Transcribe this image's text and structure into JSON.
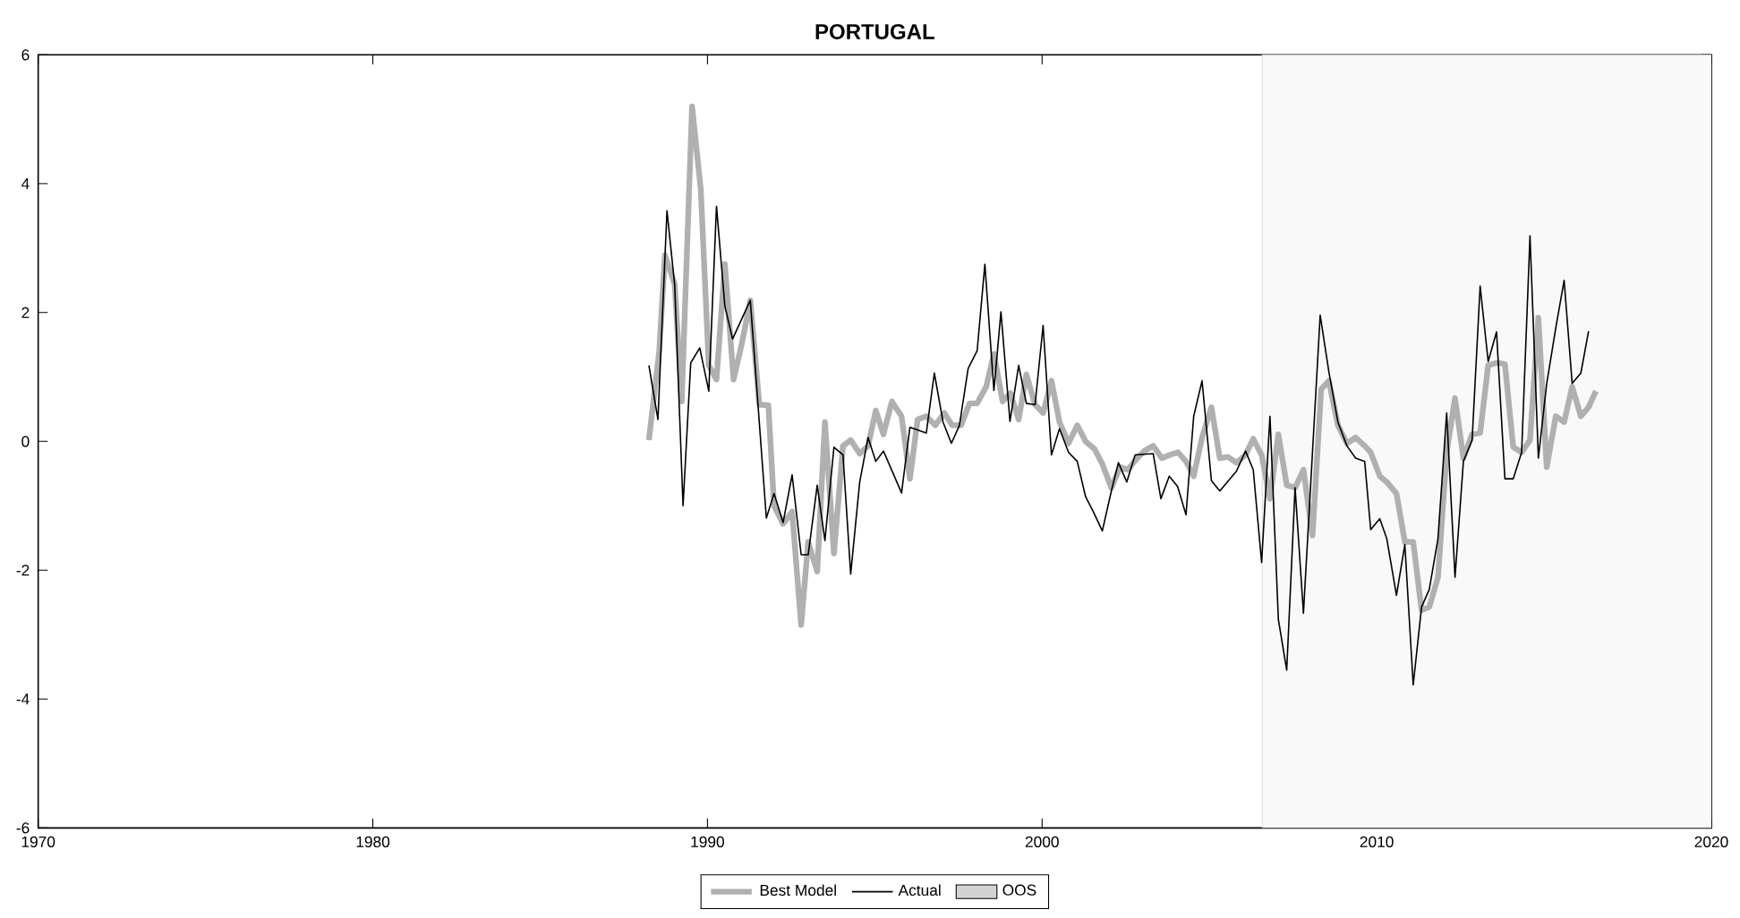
{
  "chart_data": {
    "type": "line",
    "title": "PORTUGAL",
    "xlim": [
      1970,
      2020
    ],
    "xticks": [
      1970,
      1980,
      1990,
      2000,
      2010,
      2020
    ],
    "ylim": [
      -6,
      6
    ],
    "yticks": [
      -6,
      -4,
      -2,
      0,
      2,
      4,
      6
    ],
    "grid": false,
    "legend": "bottom",
    "bands": [
      {
        "axis": "x",
        "from": 2006.58,
        "to": 2020,
        "label": "OOS",
        "color": "#f9f9f9"
      }
    ],
    "series": [
      {
        "name": "Best Model",
        "color": "#b0b0b0",
        "x": [
          1988.25,
          1988.56,
          1988.73,
          1989.02,
          1989.23,
          1989.54,
          1989.8,
          1990.04,
          1990.27,
          1990.52,
          1990.78,
          1991.02,
          1991.28,
          1991.55,
          1991.82,
          1991.99,
          1992.26,
          1992.53,
          1992.8,
          1993.01,
          1993.28,
          1993.51,
          1993.78,
          1994.05,
          1994.28,
          1994.55,
          1994.8,
          1995.03,
          1995.26,
          1995.51,
          1995.8,
          1996.05,
          1996.28,
          1996.54,
          1996.81,
          1997.08,
          1997.31,
          1997.58,
          1997.83,
          1998.06,
          1998.33,
          1998.56,
          1998.82,
          1999.05,
          1999.3,
          1999.53,
          1999.79,
          2000.03,
          2000.28,
          2000.52,
          2000.79,
          2001.05,
          2001.3,
          2001.57,
          2001.8,
          2002.07,
          2002.33,
          2002.56,
          2002.81,
          2003.05,
          2003.32,
          2003.58,
          2003.81,
          2004.06,
          2004.3,
          2004.53,
          2004.78,
          2005.06,
          2005.31,
          2005.55,
          2005.81,
          2006.08,
          2006.31,
          2006.56,
          2006.81,
          2007.06,
          2007.31,
          2007.56,
          2007.81,
          2008.08,
          2008.34,
          2008.57,
          2008.84,
          2009.11,
          2009.37,
          2009.64,
          2009.82,
          2010.09,
          2010.3,
          2010.59,
          2010.84,
          2011.09,
          2011.34,
          2011.57,
          2011.83,
          2012.09,
          2012.34,
          2012.59,
          2012.85,
          2013.09,
          2013.33,
          2013.58,
          2013.83,
          2014.08,
          2014.33,
          2014.58,
          2014.83,
          2015.08,
          2015.35,
          2015.6,
          2015.84,
          2016.1,
          2016.33,
          2016.55
        ],
        "values": [
          0.02,
          1.41,
          2.89,
          2.44,
          0.62,
          5.2,
          3.91,
          1.18,
          0.96,
          2.75,
          0.96,
          1.5,
          2.19,
          0.57,
          0.56,
          -1.0,
          -1.28,
          -1.09,
          -2.85,
          -1.56,
          -2.02,
          0.3,
          -1.74,
          -0.07,
          0.02,
          -0.19,
          -0.07,
          0.48,
          0.11,
          0.62,
          0.39,
          -0.58,
          0.34,
          0.39,
          0.25,
          0.44,
          0.25,
          0.25,
          0.59,
          0.59,
          0.85,
          1.36,
          0.62,
          0.75,
          0.34,
          1.04,
          0.57,
          0.44,
          0.94,
          0.3,
          -0.03,
          0.25,
          0.0,
          -0.12,
          -0.35,
          -0.72,
          -0.4,
          -0.44,
          -0.28,
          -0.15,
          -0.07,
          -0.26,
          -0.21,
          -0.17,
          -0.31,
          -0.54,
          0.06,
          0.53,
          -0.26,
          -0.24,
          -0.33,
          -0.21,
          0.04,
          -0.21,
          -0.89,
          0.11,
          -0.68,
          -0.72,
          -0.44,
          -1.46,
          0.81,
          0.94,
          0.25,
          -0.03,
          0.06,
          -0.07,
          -0.17,
          -0.54,
          -0.63,
          -0.81,
          -1.56,
          -1.56,
          -2.62,
          -2.57,
          -2.11,
          -0.17,
          0.67,
          -0.26,
          0.11,
          0.13,
          1.18,
          1.22,
          1.2,
          -0.09,
          -0.17,
          0.02,
          1.92,
          -0.4,
          0.39,
          0.3,
          0.85,
          0.39,
          0.53,
          0.78
        ]
      },
      {
        "name": "Actual",
        "color": "#000000",
        "x": [
          1988.25,
          1988.52,
          1988.79,
          1989.02,
          1989.27,
          1989.5,
          1989.77,
          1990.04,
          1990.27,
          1990.52,
          1990.75,
          1991.28,
          1991.76,
          1991.99,
          1992.26,
          1992.53,
          1992.8,
          1993.01,
          1993.28,
          1993.51,
          1993.78,
          1994.05,
          1994.28,
          1994.55,
          1994.8,
          1995.03,
          1995.26,
          1995.8,
          1996.05,
          1996.54,
          1996.78,
          1997.04,
          1997.29,
          1997.53,
          1997.79,
          1998.06,
          1998.29,
          1998.56,
          1998.77,
          1999.04,
          1999.3,
          1999.53,
          1999.79,
          2000.03,
          2000.28,
          2000.52,
          2000.79,
          2001.05,
          2001.3,
          2001.53,
          2001.8,
          2002.07,
          2002.28,
          2002.53,
          2002.78,
          2003.32,
          2003.55,
          2003.8,
          2004.05,
          2004.3,
          2004.53,
          2004.78,
          2005.06,
          2005.31,
          2005.81,
          2006.08,
          2006.31,
          2006.56,
          2006.81,
          2007.06,
          2007.31,
          2007.56,
          2007.81,
          2008.31,
          2008.57,
          2008.84,
          2009.11,
          2009.37,
          2009.64,
          2009.82,
          2010.09,
          2010.3,
          2010.59,
          2010.84,
          2011.09,
          2011.34,
          2011.57,
          2011.83,
          2012.09,
          2012.34,
          2012.59,
          2012.85,
          2013.09,
          2013.33,
          2013.58,
          2013.83,
          2014.08,
          2014.33,
          2014.58,
          2014.83,
          2015.08,
          2015.35,
          2015.6,
          2015.84,
          2016.1,
          2016.33
        ],
        "values": [
          1.18,
          0.34,
          3.58,
          2.43,
          -1.0,
          1.22,
          1.45,
          0.78,
          3.65,
          2.1,
          1.59,
          2.19,
          -1.19,
          -0.81,
          -1.26,
          -0.52,
          -1.76,
          -1.76,
          -0.68,
          -1.54,
          -0.09,
          -0.21,
          -2.06,
          -0.63,
          0.06,
          -0.31,
          -0.15,
          -0.8,
          0.22,
          0.13,
          1.06,
          0.3,
          -0.03,
          0.25,
          1.13,
          1.41,
          2.75,
          0.79,
          2.01,
          0.31,
          1.18,
          0.59,
          0.57,
          1.8,
          -0.21,
          0.2,
          -0.17,
          -0.31,
          -0.86,
          -1.09,
          -1.39,
          -0.77,
          -0.33,
          -0.63,
          -0.21,
          -0.19,
          -0.89,
          -0.54,
          -0.7,
          -1.14,
          0.39,
          0.94,
          -0.61,
          -0.77,
          -0.46,
          -0.15,
          -0.44,
          -1.88,
          0.39,
          -2.76,
          -3.55,
          -0.72,
          -2.67,
          1.96,
          1.08,
          0.3,
          -0.07,
          -0.26,
          -0.31,
          -1.37,
          -1.2,
          -1.51,
          -2.39,
          -1.6,
          -3.78,
          -2.57,
          -2.3,
          -1.51,
          0.44,
          -2.11,
          -0.31,
          0.02,
          2.41,
          1.24,
          1.7,
          -0.58,
          -0.58,
          -0.17,
          3.19,
          -0.26,
          0.9,
          1.76,
          2.5,
          0.9,
          1.06,
          1.71
        ]
      }
    ]
  }
}
